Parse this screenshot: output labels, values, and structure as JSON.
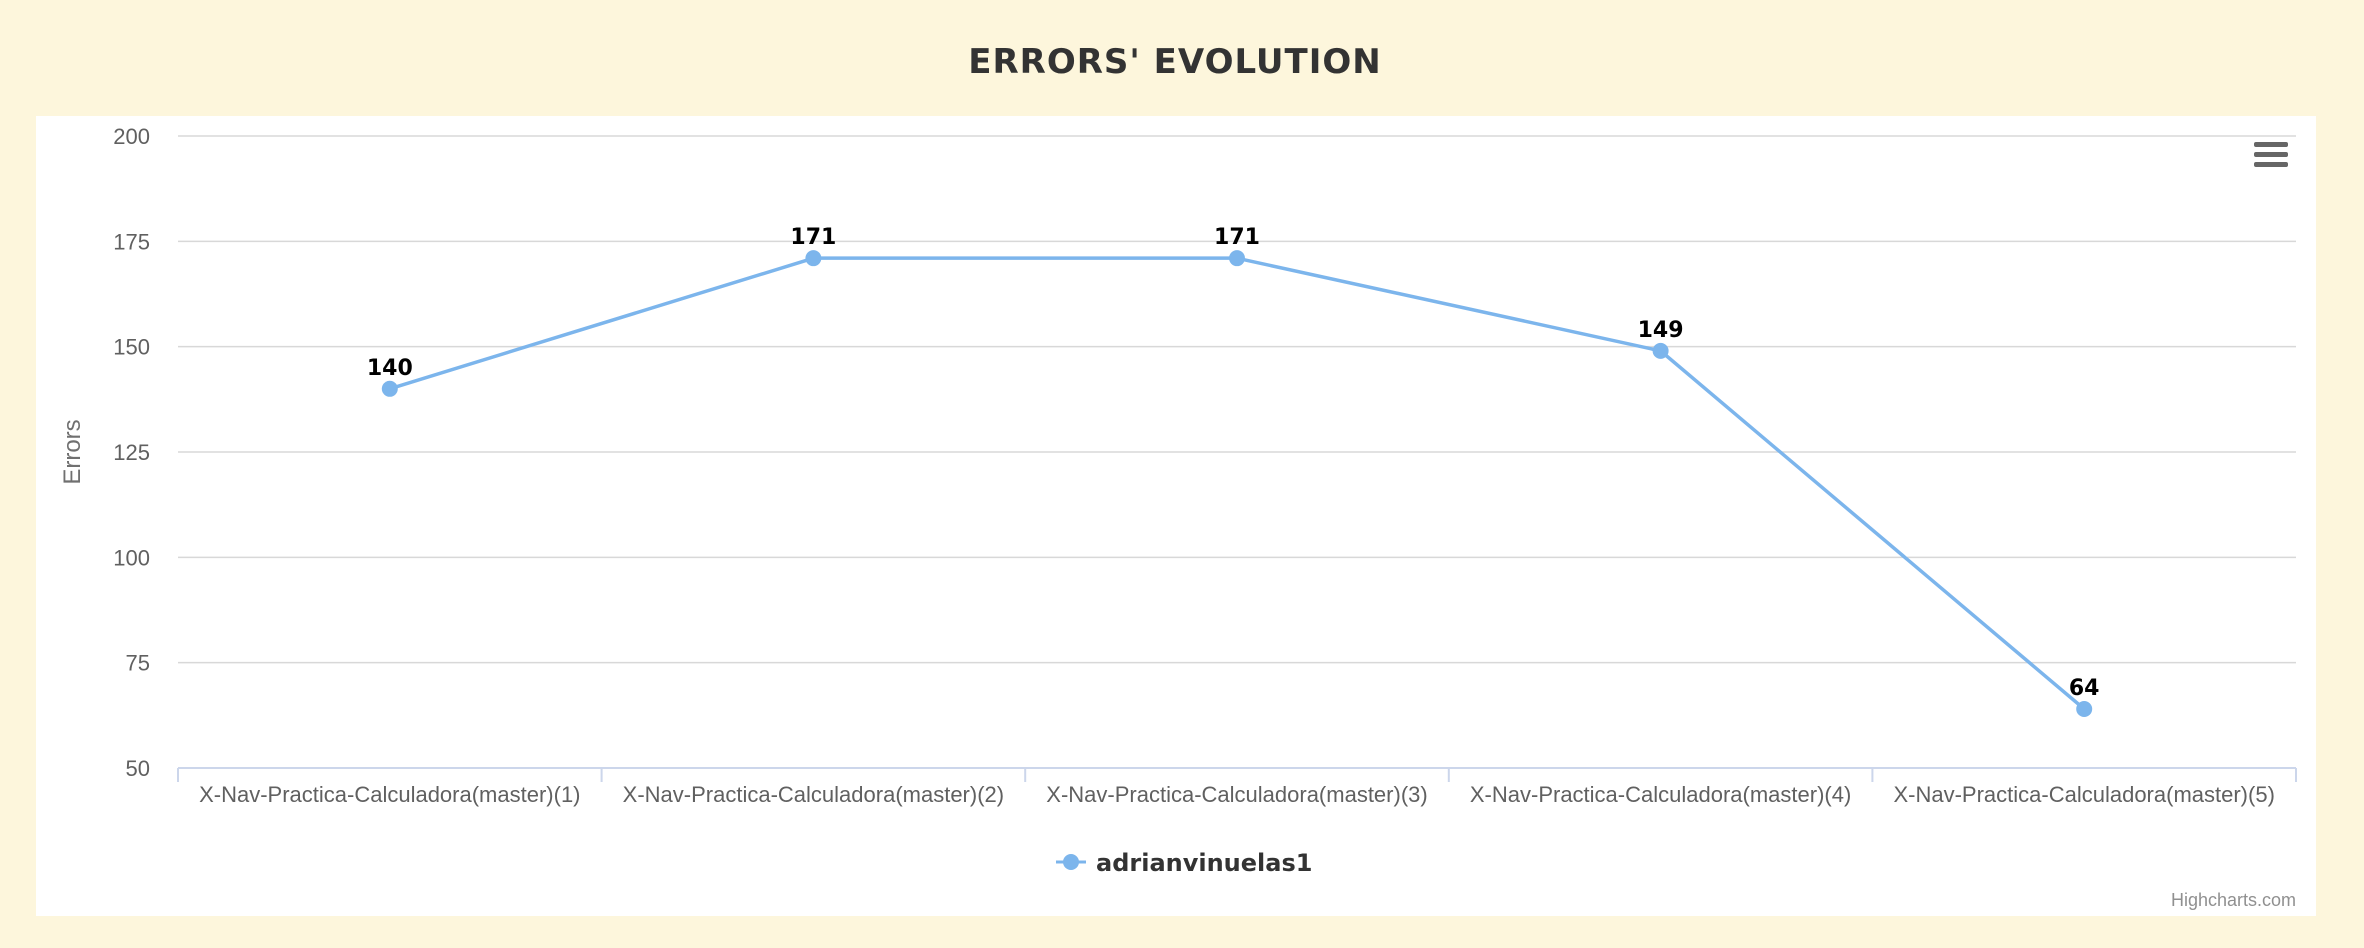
{
  "page": {
    "title": "ERRORS' EVOLUTION"
  },
  "chart_data": {
    "type": "line",
    "title": "ERRORS' EVOLUTION",
    "categories": [
      "X-Nav-Practica-Calculadora(master)(1)",
      "X-Nav-Practica-Calculadora(master)(2)",
      "X-Nav-Practica-Calculadora(master)(3)",
      "X-Nav-Practica-Calculadora(master)(4)",
      "X-Nav-Practica-Calculadora(master)(5)"
    ],
    "series": [
      {
        "name": "adrianvinuelas1",
        "values": [
          140,
          171,
          171,
          149,
          64
        ],
        "color": "#7cb5ec"
      }
    ],
    "xlabel": "",
    "ylabel": "Errors",
    "ylim": [
      50,
      200
    ],
    "yticks": [
      50,
      75,
      100,
      125,
      150,
      175,
      200
    ],
    "grid": true,
    "data_labels": true,
    "legend_position": "bottom-center",
    "credits": "Highcharts.com",
    "menu_icon": "hamburger-menu-icon"
  },
  "colors": {
    "background": "#fdf6dc",
    "panel": "#ffffff",
    "series": "#7cb5ec",
    "grid": "#d8d8d8",
    "axis": "#ccd6eb"
  }
}
